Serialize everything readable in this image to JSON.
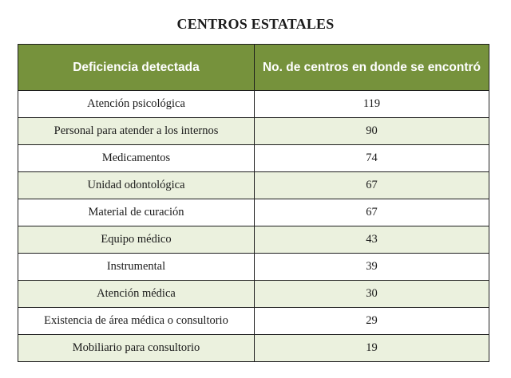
{
  "title": "CENTROS ESTATALES",
  "table": {
    "headers": [
      "Deficiencia detectada",
      "No. de centros en donde se encontró"
    ],
    "rows": [
      {
        "deficiency": "Atención psicológica",
        "count": "119"
      },
      {
        "deficiency": "Personal para atender a los internos",
        "count": "90"
      },
      {
        "deficiency": "Medicamentos",
        "count": "74"
      },
      {
        "deficiency": "Unidad odontológica",
        "count": "67"
      },
      {
        "deficiency": "Material de curación",
        "count": "67"
      },
      {
        "deficiency": "Equipo médico",
        "count": "43"
      },
      {
        "deficiency": "Instrumental",
        "count": "39"
      },
      {
        "deficiency": "Atención médica",
        "count": "30"
      },
      {
        "deficiency": "Existencia de área médica o consultorio",
        "count": "29"
      },
      {
        "deficiency": "Mobiliario para consultorio",
        "count": "19"
      }
    ]
  },
  "colors": {
    "header_bg": "#76923c",
    "header_text": "#ffffff",
    "band_row_bg": "#ebf1de",
    "border": "#1e1e1e"
  }
}
